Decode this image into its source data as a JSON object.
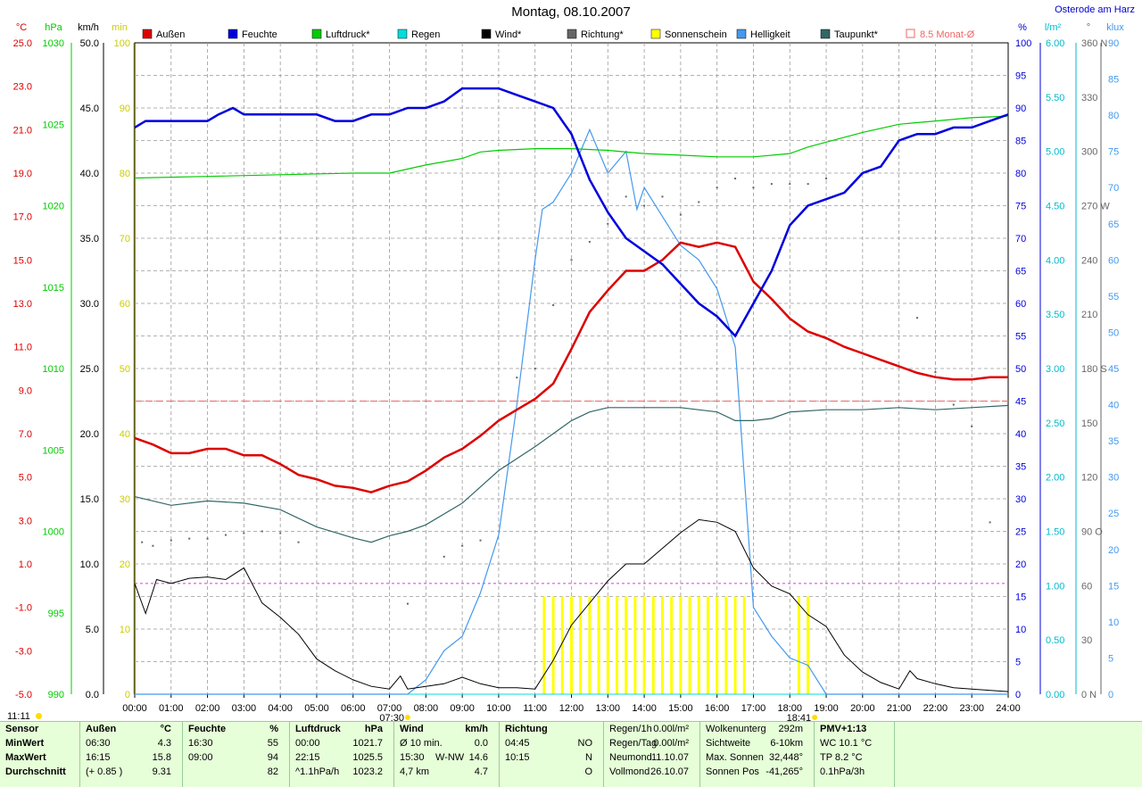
{
  "title": "Montag, 08.10.2007",
  "station": "Osterode am Harz",
  "colors": {
    "temp": "#dd0000",
    "humidity": "#0000dd",
    "pressure": "#00cc00",
    "rain": "#00dddd",
    "wind": "#000000",
    "direction": "#666666",
    "sun": "#ffff00",
    "brightness": "#4499ee",
    "dewpoint": "#336666",
    "monthavg": "#ee6666",
    "speed_axis": "#cccc00",
    "pink": "#cc44cc"
  },
  "legend": [
    {
      "label": "Außen",
      "color": "#dd0000"
    },
    {
      "label": "Feuchte",
      "color": "#0000dd"
    },
    {
      "label": "Luftdruck*",
      "color": "#00cc00"
    },
    {
      "label": "Regen",
      "color": "#00dddd"
    },
    {
      "label": "Wind*",
      "color": "#000000"
    },
    {
      "label": "Richtung*",
      "color": "#666666"
    },
    {
      "label": "Sonnenschein",
      "color": "#ffff00"
    },
    {
      "label": "Helligkeit",
      "color": "#4499ee"
    },
    {
      "label": "Taupunkt*",
      "color": "#336666"
    },
    {
      "label": "8.5 Monat-Ø",
      "color": "#ee6666",
      "outline": true
    }
  ],
  "axis_units": {
    "temp": "°C",
    "pressure": "hPa",
    "wind": "km/h",
    "min": "min",
    "humidity": "%",
    "rain": "l/m²",
    "direction": "°",
    "brightness": "klux"
  },
  "axes": {
    "temp": [
      "25.0",
      "23.0",
      "21.0",
      "19.0",
      "17.0",
      "15.0",
      "13.0",
      "11.0",
      "9.0",
      "7.0",
      "5.0",
      "3.0",
      "1.0",
      "-1.0",
      "-3.0",
      "-5.0"
    ],
    "pressure": [
      "1030",
      "1025",
      "1020",
      "1015",
      "1010",
      "1005",
      "1000",
      "995",
      "990"
    ],
    "wind": [
      "50.0",
      "45.0",
      "40.0",
      "35.0",
      "30.0",
      "25.0",
      "20.0",
      "15.0",
      "10.0",
      "5.0",
      "0.0"
    ],
    "min": [
      "100",
      "90",
      "80",
      "70",
      "60",
      "50",
      "40",
      "30",
      "20",
      "10",
      "0"
    ],
    "humidity": [
      "100",
      "95",
      "90",
      "85",
      "80",
      "75",
      "70",
      "65",
      "60",
      "55",
      "50",
      "45",
      "40",
      "35",
      "30",
      "25",
      "20",
      "15",
      "10",
      "5",
      "0"
    ],
    "rain": [
      "6.00",
      "5.50",
      "5.00",
      "4.50",
      "4.00",
      "3.50",
      "3.00",
      "2.50",
      "2.00",
      "1.50",
      "1.00",
      "0.50",
      "0.00"
    ],
    "direction": [
      "360 N",
      "330",
      "300",
      "270 W",
      "240",
      "210",
      "180 S",
      "150",
      "120",
      "90 O",
      "60",
      "30",
      "0 N"
    ],
    "brightness": [
      "90",
      "85",
      "80",
      "75",
      "70",
      "65",
      "60",
      "55",
      "50",
      "45",
      "40",
      "35",
      "30",
      "25",
      "20",
      "15",
      "10",
      "5",
      "0"
    ],
    "time": [
      "00:00",
      "01:00",
      "02:00",
      "03:00",
      "04:00",
      "05:00",
      "06:00",
      "07:00",
      "08:00",
      "09:00",
      "10:00",
      "11:00",
      "12:00",
      "13:00",
      "14:00",
      "15:00",
      "16:00",
      "17:00",
      "18:00",
      "19:00",
      "20:00",
      "21:00",
      "22:00",
      "23:00",
      "24:00"
    ]
  },
  "sunrise": "07:30",
  "sunset": "18:41",
  "time_marker": "11:11",
  "chart_data": {
    "type": "line",
    "x_unit": "hour",
    "xlim": [
      0,
      24
    ],
    "month_avg_temp": 8.5,
    "pink_line_wind": 8.5,
    "series": [
      {
        "name": "Außen",
        "axis": "temp",
        "ylim": [
          -5,
          25
        ],
        "x": [
          0,
          0.5,
          1,
          1.5,
          2,
          2.5,
          3,
          3.5,
          4,
          4.5,
          5,
          5.5,
          6,
          6.5,
          7,
          7.5,
          8,
          8.5,
          9,
          9.5,
          10,
          10.5,
          11,
          11.5,
          12,
          12.5,
          13,
          13.5,
          14,
          14.5,
          15,
          15.5,
          16,
          16.5,
          17,
          17.5,
          18,
          18.5,
          19,
          19.5,
          20,
          20.5,
          21,
          21.5,
          22,
          22.5,
          23,
          23.5,
          24
        ],
        "y": [
          6.8,
          6.5,
          6.1,
          6.1,
          6.3,
          6.3,
          6.0,
          6.0,
          5.6,
          5.1,
          4.9,
          4.6,
          4.5,
          4.3,
          4.6,
          4.8,
          5.3,
          5.9,
          6.3,
          6.9,
          7.6,
          8.1,
          8.6,
          9.3,
          10.9,
          12.6,
          13.6,
          14.5,
          14.5,
          15.0,
          15.8,
          15.6,
          15.8,
          15.6,
          14.0,
          13.2,
          12.3,
          11.7,
          11.4,
          11.0,
          10.7,
          10.4,
          10.1,
          9.8,
          9.6,
          9.5,
          9.5,
          9.6,
          9.6
        ]
      },
      {
        "name": "Feuchte",
        "axis": "humidity",
        "ylim": [
          0,
          100
        ],
        "x": [
          0,
          0.3,
          1,
          1.5,
          2,
          2.3,
          2.7,
          3,
          3.5,
          4,
          4.5,
          5,
          5.5,
          6,
          6.5,
          7,
          7.5,
          8,
          8.5,
          9,
          9.5,
          10,
          10.5,
          11,
          11.5,
          12,
          12.5,
          13,
          13.5,
          14,
          14.5,
          15,
          15.5,
          16,
          16.5,
          17,
          17.5,
          18,
          18.5,
          19,
          19.5,
          20,
          20.5,
          21,
          21.5,
          22,
          22.5,
          23,
          23.5,
          24
        ],
        "y": [
          87,
          88,
          88,
          88,
          88,
          89,
          90,
          89,
          89,
          89,
          89,
          89,
          88,
          88,
          89,
          89,
          90,
          90,
          91,
          93,
          93,
          93,
          92,
          91,
          90,
          86,
          79,
          74,
          70,
          68,
          66,
          63,
          60,
          58,
          55,
          60,
          65,
          72,
          75,
          76,
          77,
          80,
          81,
          85,
          86,
          86,
          87,
          87,
          88,
          89
        ]
      },
      {
        "name": "Luftdruck*",
        "axis": "pressure",
        "ylim": [
          990,
          1030
        ],
        "x": [
          0,
          2,
          4,
          6,
          7,
          8,
          9,
          9.5,
          10,
          11,
          12,
          13,
          14,
          15,
          16,
          17,
          18,
          18.5,
          19,
          20,
          21,
          22,
          23,
          24
        ],
        "y": [
          1021.7,
          1021.8,
          1021.9,
          1022.0,
          1022.0,
          1022.5,
          1022.9,
          1023.3,
          1023.4,
          1023.5,
          1023.5,
          1023.4,
          1023.2,
          1023.1,
          1023.0,
          1023.0,
          1023.2,
          1023.6,
          1023.9,
          1024.5,
          1025.0,
          1025.2,
          1025.4,
          1025.5
        ]
      },
      {
        "name": "Regen",
        "axis": "rain",
        "ylim": [
          0,
          6
        ],
        "x": [
          0,
          24
        ],
        "y": [
          0,
          0
        ]
      },
      {
        "name": "Wind*",
        "axis": "wind",
        "ylim": [
          0,
          50
        ],
        "x": [
          0,
          0.3,
          0.6,
          1,
          1.5,
          2,
          2.5,
          3,
          3.5,
          4,
          4.5,
          5,
          5.5,
          6,
          6.5,
          7,
          7.3,
          7.5,
          8,
          8.5,
          9,
          9.5,
          10,
          10.5,
          11,
          11.5,
          12,
          12.5,
          13,
          13.5,
          14,
          14.5,
          15,
          15.5,
          16,
          16.5,
          17,
          17.5,
          18,
          18.5,
          19,
          19.5,
          20,
          20.5,
          21,
          21.3,
          21.5,
          22,
          22.5,
          23,
          24
        ],
        "y": [
          8.5,
          6.2,
          8.8,
          8.5,
          8.9,
          9.0,
          8.8,
          9.7,
          7.0,
          5.9,
          4.6,
          2.7,
          1.8,
          1.1,
          0.6,
          0.4,
          1.4,
          0.4,
          0.6,
          0.8,
          1.3,
          0.8,
          0.5,
          0.5,
          0.4,
          2.6,
          5.3,
          7.0,
          8.7,
          10.0,
          10.0,
          11.2,
          12.4,
          13.4,
          13.2,
          12.5,
          9.7,
          8.3,
          7.7,
          6.1,
          5.2,
          3.0,
          1.7,
          0.9,
          0.4,
          1.8,
          1.2,
          0.8,
          0.5,
          0.4,
          0.2
        ]
      },
      {
        "name": "Richtung*",
        "axis": "direction",
        "ylim": [
          0,
          360
        ],
        "x": [
          0.2,
          0.5,
          1,
          1.5,
          2,
          2.5,
          3,
          3.5,
          4,
          4.5,
          7.5,
          8.5,
          9,
          9.5,
          10.5,
          11,
          11.5,
          12,
          12.5,
          13,
          13.5,
          14,
          14.5,
          15,
          15.5,
          16,
          16.5,
          17,
          17.5,
          18,
          18.5,
          19,
          21.5,
          22,
          22.5,
          23,
          23.5
        ],
        "y": [
          84,
          82,
          85,
          86,
          86,
          88,
          89,
          90,
          89,
          84,
          50,
          76,
          82,
          85,
          175,
          180,
          215,
          240,
          250,
          260,
          275,
          270,
          275,
          265,
          272,
          280,
          285,
          280,
          282,
          282,
          282,
          285,
          208,
          178,
          160,
          148,
          95
        ]
      },
      {
        "name": "Sonnenschein",
        "axis": "min",
        "ylim": [
          0,
          100
        ],
        "x": [
          11.25,
          11.5,
          11.75,
          12,
          12.25,
          12.5,
          12.75,
          13,
          13.25,
          13.5,
          13.75,
          14,
          14.25,
          14.5,
          14.75,
          15,
          15.25,
          15.5,
          15.75,
          16,
          16.25,
          16.5,
          16.75,
          18.25,
          18.5
        ],
        "y": [
          15,
          15,
          15,
          15,
          15,
          15,
          15,
          15,
          15,
          15,
          15,
          15,
          15,
          15,
          15,
          15,
          15,
          15,
          15,
          15,
          15,
          15,
          15,
          15,
          15
        ]
      },
      {
        "name": "Helligkeit",
        "axis": "brightness",
        "ylim": [
          0,
          90
        ],
        "x": [
          0,
          7.5,
          8,
          8.5,
          9,
          9.5,
          10,
          10.5,
          11,
          11.2,
          11.5,
          12,
          12.5,
          13,
          13.5,
          13.8,
          14,
          14.5,
          15,
          15.5,
          16,
          16.5,
          17,
          17.5,
          18,
          18.5,
          19,
          24
        ],
        "y": [
          0,
          0,
          2,
          6,
          8,
          14,
          22,
          40,
          60,
          67,
          68,
          72,
          78,
          72,
          75,
          67,
          70,
          66,
          62,
          60,
          56,
          48,
          12,
          8,
          5,
          4,
          0,
          0
        ]
      },
      {
        "name": "Taupunkt*",
        "axis": "temp",
        "ylim": [
          -5,
          25
        ],
        "x": [
          0,
          1,
          2,
          3,
          4,
          5,
          6,
          6.5,
          7,
          7.5,
          8,
          9,
          10,
          11,
          12,
          12.5,
          13,
          14,
          15,
          16,
          16.5,
          17,
          17.5,
          18,
          19,
          20,
          21,
          22,
          23,
          24
        ],
        "y": [
          4.1,
          3.7,
          3.9,
          3.8,
          3.5,
          2.7,
          2.2,
          2.0,
          2.3,
          2.5,
          2.8,
          3.8,
          5.3,
          6.4,
          7.6,
          8.0,
          8.2,
          8.2,
          8.2,
          8.0,
          7.6,
          7.6,
          7.7,
          8.0,
          8.1,
          8.1,
          8.2,
          8.1,
          8.2,
          8.3
        ]
      }
    ]
  },
  "stats": {
    "sensor": {
      "header": "Sensor",
      "rows": [
        "MinWert",
        "MaxWert",
        "Durchschnitt"
      ]
    },
    "aussen": {
      "header": "Außen",
      "unit": "°C",
      "rows": [
        [
          "06:30",
          "4.3"
        ],
        [
          "16:15",
          "15.8"
        ],
        [
          "(+ 0.85 )",
          "9.31"
        ]
      ]
    },
    "feuchte": {
      "header": "Feuchte",
      "unit": "%",
      "rows": [
        [
          "16:30",
          "55"
        ],
        [
          "09:00",
          "94"
        ],
        [
          "",
          "82"
        ]
      ]
    },
    "luftdruck": {
      "header": "Luftdruck",
      "unit": "hPa",
      "rows": [
        [
          "00:00",
          "1021.7"
        ],
        [
          "22:15",
          "1025.5"
        ],
        [
          "^1.1hPa/h",
          "1023.2"
        ]
      ]
    },
    "wind": {
      "header": "Wind",
      "unit": "km/h",
      "rows": [
        [
          "Ø 10 min.",
          "",
          "0.0"
        ],
        [
          "15:30",
          "W-NW",
          "14.6"
        ],
        [
          "4,7 km",
          "",
          "4.7"
        ]
      ]
    },
    "richtung": {
      "header": "Richtung",
      "rows": [
        [
          "04:45",
          "NO"
        ],
        [
          "10:15",
          "N"
        ],
        [
          "",
          "O"
        ]
      ]
    },
    "regen": {
      "rows": [
        [
          "Regen/1h",
          "0.00l/m²"
        ],
        [
          "Regen/Tag",
          "0.00l/m²"
        ],
        [
          "Neumond",
          "11.10.07"
        ],
        [
          "Vollmond",
          "26.10.07"
        ]
      ]
    },
    "wolken": {
      "rows": [
        [
          "Wolkenunterg",
          "292m"
        ],
        [
          "Sichtweite",
          "6-10km"
        ],
        [
          "Max. Sonnen",
          "32,448°"
        ],
        [
          "Sonnen Pos",
          "-41,265°"
        ]
      ]
    },
    "pmv": {
      "rows": [
        "PMV+1:13",
        "WC 10.1 °C",
        "TP 8.2 °C",
        "0.1hPa/3h"
      ]
    }
  }
}
